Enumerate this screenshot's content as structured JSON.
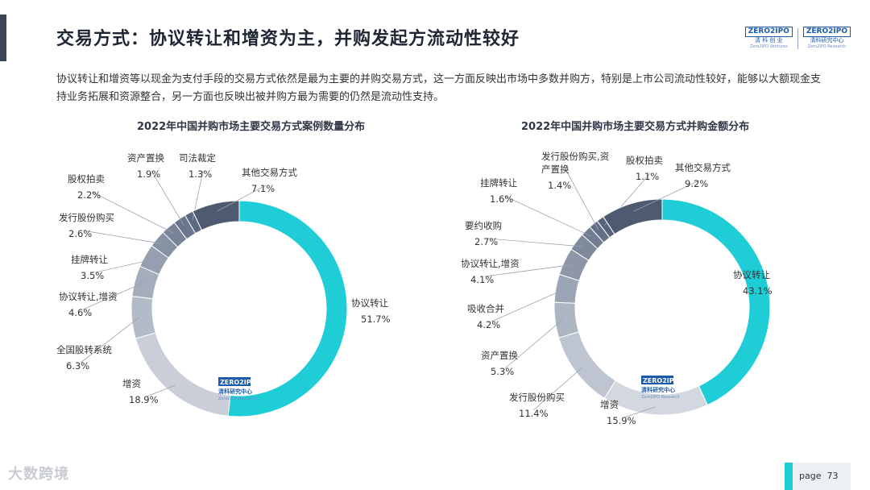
{
  "header": {
    "title": "交易方式：协议转让和增资为主，并购发起方流动性较好",
    "logo_left_wordmark": "ZERO2IPO",
    "logo_left_name": "清 科 创 业",
    "logo_left_en": "Zero2IPO Ventures",
    "logo_right_wordmark": "ZERO2IPO",
    "logo_right_name": "清科研究中心",
    "logo_right_en": "Zero2IPO Research"
  },
  "intro": "协议转让和增资等以现金为支付手段的交易方式依然是最为主要的并购交易方式，这一方面反映出市场中多数并购方，特别是上市公司流动性较好，能够以大额现金支持业务拓展和资源整合，另一方面也反映出被并购方最为需要的仍然是流动性支持。",
  "center_logo": {
    "wordmark": "ZERO2IPO",
    "name": "清科研究中心",
    "en": "Zero2IPO Research"
  },
  "footer": {
    "page_label": "page",
    "page_number": "73",
    "watermark": "大数跨境"
  },
  "colors": {
    "primary": "#1fcdd7",
    "accent_bar": "#3b4556"
  },
  "chart_data": [
    {
      "type": "pie",
      "donut": true,
      "title": "2022年中国并购市场主要交易方式案例数量分布",
      "slices": [
        {
          "label": "协议转让",
          "value": 51.7,
          "display": "51.7%",
          "color": "#1fcdd7"
        },
        {
          "label": "增资",
          "value": 18.9,
          "display": "18.9%",
          "color": "#c9ced8"
        },
        {
          "label": "全国股转系统",
          "value": 6.3,
          "display": "6.3%",
          "color": "#b4bbc8"
        },
        {
          "label": "协议转让,增资",
          "value": 4.6,
          "display": "4.6%",
          "color": "#a4adbc"
        },
        {
          "label": "挂牌转让",
          "value": 3.5,
          "display": "3.5%",
          "color": "#959fb0"
        },
        {
          "label": "发行股份购买",
          "value": 2.6,
          "display": "2.6%",
          "color": "#8791a4"
        },
        {
          "label": "股权拍卖",
          "value": 2.2,
          "display": "2.2%",
          "color": "#788398"
        },
        {
          "label": "资产置换",
          "value": 1.9,
          "display": "1.9%",
          "color": "#6a768c"
        },
        {
          "label": "司法裁定",
          "value": 1.3,
          "display": "1.3%",
          "color": "#5c6880"
        },
        {
          "label": "其他交易方式",
          "value": 7.1,
          "display": "7.1%",
          "color": "#4e5a70"
        }
      ]
    },
    {
      "type": "pie",
      "donut": true,
      "title": "2022年中国并购市场主要交易方式并购金额分布",
      "slices": [
        {
          "label": "协议转让",
          "value": 43.1,
          "display": "43.1%",
          "color": "#1fcdd7"
        },
        {
          "label": "增资",
          "value": 15.9,
          "display": "15.9%",
          "color": "#d3d7df"
        },
        {
          "label": "发行股份购买",
          "value": 11.4,
          "display": "11.4%",
          "color": "#bfc5d0"
        },
        {
          "label": "资产置换",
          "value": 5.3,
          "display": "5.3%",
          "color": "#adb5c2"
        },
        {
          "label": "吸收合并",
          "value": 4.2,
          "display": "4.2%",
          "color": "#9ca5b5"
        },
        {
          "label": "协议转让,增资",
          "value": 4.1,
          "display": "4.1%",
          "color": "#8d97a8"
        },
        {
          "label": "要约收购",
          "value": 2.7,
          "display": "2.7%",
          "color": "#7e899c"
        },
        {
          "label": "挂牌转让",
          "value": 1.6,
          "display": "1.6%",
          "color": "#717c90"
        },
        {
          "label": "发行股份购买,资产置换",
          "value": 1.4,
          "display": "1.4%",
          "color": "#647085"
        },
        {
          "label": "股权拍卖",
          "value": 1.1,
          "display": "1.1%",
          "color": "#59647a"
        },
        {
          "label": "其他交易方式",
          "value": 9.2,
          "display": "9.2%",
          "color": "#4e5a70"
        }
      ]
    }
  ]
}
